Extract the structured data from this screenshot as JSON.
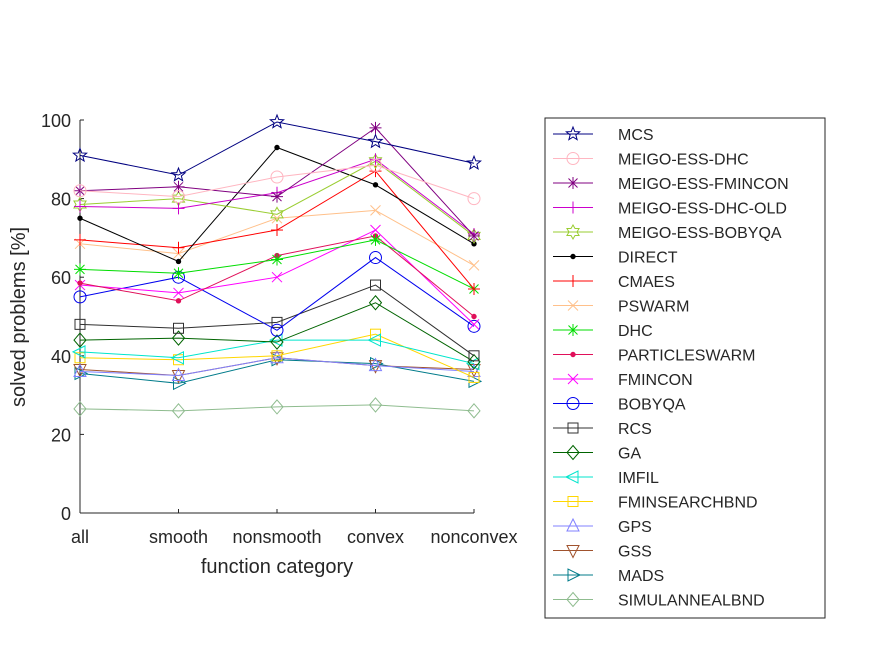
{
  "chart_data": {
    "type": "line",
    "title": "",
    "xlabel": "function category",
    "ylabel": "solved problems [%]",
    "categories": [
      "all",
      "smooth",
      "nonsmooth",
      "convex",
      "nonconvex"
    ],
    "ylim": [
      0,
      100
    ],
    "yticks": [
      0,
      20,
      40,
      60,
      80,
      100
    ],
    "grid": false,
    "legend": "right",
    "series": [
      {
        "name": "MCS",
        "color": "#000080",
        "marker": "pentagram",
        "values": [
          91,
          86,
          99.5,
          94.5,
          89
        ]
      },
      {
        "name": "MEIGO-ESS-DHC",
        "color": "#ffb6c1",
        "marker": "circle",
        "values": [
          82,
          80.5,
          85.5,
          88.5,
          80
        ]
      },
      {
        "name": "MEIGO-ESS-FMINCON",
        "color": "#800080",
        "marker": "asterisk",
        "values": [
          82,
          83,
          80.5,
          98,
          70.5
        ]
      },
      {
        "name": "MEIGO-ESS-DHC-OLD",
        "color": "#cc00cc",
        "marker": "plus",
        "values": [
          78,
          77.5,
          81.5,
          90,
          71
        ]
      },
      {
        "name": "MEIGO-ESS-BOBYQA",
        "color": "#9acd32",
        "marker": "hexagram",
        "values": [
          78.5,
          80,
          76,
          89.5,
          70.5
        ]
      },
      {
        "name": "DIRECT",
        "color": "#000000",
        "marker": "point",
        "values": [
          75,
          64,
          93,
          83.5,
          68.5
        ]
      },
      {
        "name": "CMAES",
        "color": "#ff0000",
        "marker": "plus",
        "values": [
          69.5,
          67.5,
          72,
          87,
          57
        ]
      },
      {
        "name": "PSWARM",
        "color": "#ffc08a",
        "marker": "x",
        "values": [
          68.5,
          66,
          75,
          77,
          63
        ]
      },
      {
        "name": "DHC",
        "color": "#00dd00",
        "marker": "asterisk",
        "values": [
          62,
          61,
          64.5,
          69.5,
          57
        ]
      },
      {
        "name": "PARTICLESWARM",
        "color": "#e0105a",
        "marker": "point",
        "values": [
          58.5,
          54,
          65.5,
          70.5,
          50
        ]
      },
      {
        "name": "FMINCON",
        "color": "#ff00ff",
        "marker": "x",
        "values": [
          58,
          56,
          60,
          72,
          48
        ]
      },
      {
        "name": "BOBYQA",
        "color": "#0000ee",
        "marker": "circle",
        "values": [
          55,
          60,
          46.5,
          65,
          47.5
        ]
      },
      {
        "name": "RCS",
        "color": "#303030",
        "marker": "square",
        "values": [
          48,
          47,
          48.5,
          58,
          40
        ]
      },
      {
        "name": "GA",
        "color": "#006400",
        "marker": "diamond",
        "values": [
          44,
          44.5,
          43.5,
          53.5,
          38.5
        ]
      },
      {
        "name": "IMFIL",
        "color": "#00e5cc",
        "marker": "triangle-left",
        "values": [
          41,
          39.5,
          44,
          44,
          38
        ]
      },
      {
        "name": "FMINSEARCHBND",
        "color": "#ffd700",
        "marker": "square",
        "values": [
          39.5,
          39,
          40,
          45.5,
          34.5
        ]
      },
      {
        "name": "GPS",
        "color": "#8080ff",
        "marker": "triangle-up",
        "values": [
          36,
          35,
          39.5,
          37.5,
          36
        ]
      },
      {
        "name": "GSS",
        "color": "#a0522d",
        "marker": "triangle-down",
        "values": [
          36.5,
          35,
          39.5,
          37.5,
          36.5
        ]
      },
      {
        "name": "MADS",
        "color": "#007b8a",
        "marker": "triangle-right",
        "values": [
          35.5,
          33,
          39,
          38,
          33.5
        ]
      },
      {
        "name": "SIMULANNEALBND",
        "color": "#8fbc8f",
        "marker": "diamond",
        "values": [
          26.5,
          26,
          27,
          27.5,
          26
        ]
      }
    ]
  }
}
